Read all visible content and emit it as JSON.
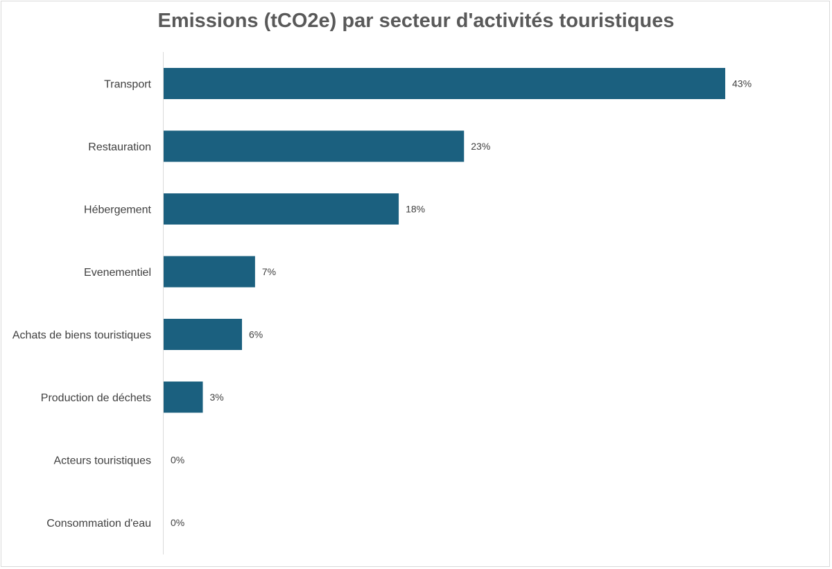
{
  "chart_data": {
    "type": "bar",
    "orientation": "horizontal",
    "title": "Emissions (tCO2e) par secteur d'activités touristiques",
    "categories": [
      "Transport",
      "Restauration",
      "Hébergement",
      "Evenementiel",
      "Achats de biens touristiques",
      "Production de déchets",
      "Acteurs touristiques",
      "Consommation d'eau"
    ],
    "values": [
      43,
      23,
      18,
      7,
      6,
      3,
      0,
      0
    ],
    "value_labels": [
      "43%",
      "23%",
      "18%",
      "7%",
      "6%",
      "3%",
      "0%",
      "0%"
    ],
    "unit": "%",
    "xlim": [
      0,
      50
    ],
    "grid": false,
    "legend": "none",
    "bar_color": "#1b607f"
  }
}
